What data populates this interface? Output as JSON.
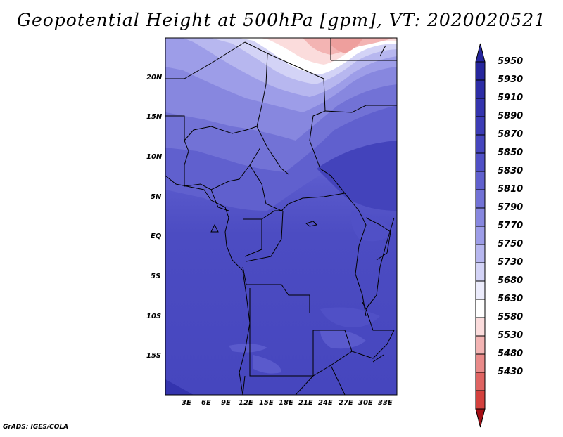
{
  "title": "Geopotential Height at 500hPa [gpm], VT: 2020020521",
  "footer": "GrADS: IGES/COLA",
  "colors": {
    "land_lines": "#000000",
    "levels": [
      "#a50f15",
      "#b9221f",
      "#cc3530",
      "#dc5550",
      "#e57a78",
      "#ee9f9d",
      "#f6c6c5",
      "#fde9e9",
      "#ffffff",
      "#e2e2fb",
      "#c4c4f5",
      "#a6a6ee",
      "#8e8ee6",
      "#7878dc",
      "#6868d4",
      "#5a5acc",
      "#4e4ec4",
      "#4343bb",
      "#3838b0",
      "#2c2ca4",
      "#22229a"
    ]
  },
  "map": {
    "lat_labels": [
      "20N",
      "15N",
      "10N",
      "5N",
      "EQ",
      "5S",
      "10S",
      "15S"
    ],
    "lon_labels": [
      "3E",
      "6E",
      "9E",
      "12E",
      "15E",
      "18E",
      "21E",
      "24E",
      "27E",
      "30E",
      "33E"
    ]
  },
  "colorbar": {
    "labels": [
      "5950",
      "5930",
      "5910",
      "5890",
      "5870",
      "5850",
      "5830",
      "5810",
      "5790",
      "5770",
      "5750",
      "5730",
      "5680",
      "5630",
      "5580",
      "5530",
      "5480",
      "5430"
    ],
    "colors": [
      "#26269d",
      "#2d2da6",
      "#3434ae",
      "#3c3cb6",
      "#4646be",
      "#5050c6",
      "#6060ce",
      "#7272d6",
      "#8787df",
      "#9d9de8",
      "#b7b7ef",
      "#d3d3f6",
      "#ececfc",
      "#ffffff",
      "#fbdcdc",
      "#f3b4b3",
      "#e98a89",
      "#df6462",
      "#d4413e",
      "#c62e2a",
      "#b01e1b"
    ],
    "top_color": "#26269d",
    "bottom_color": "#a50f15"
  }
}
